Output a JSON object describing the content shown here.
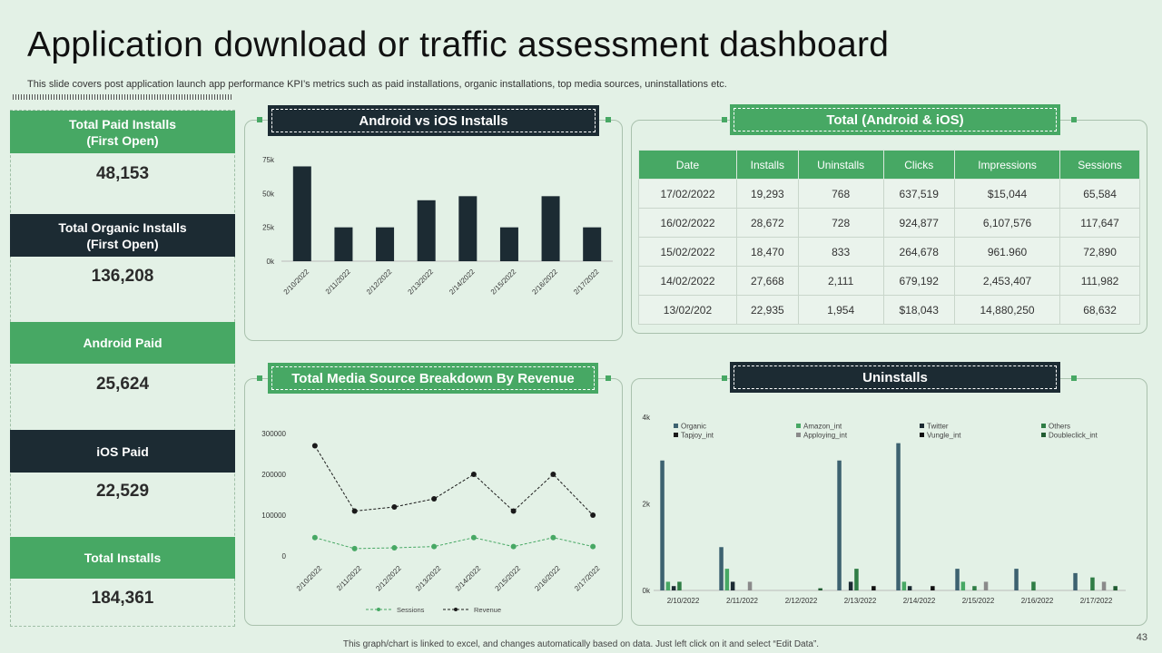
{
  "header": {
    "title": "Application download or traffic assessment dashboard",
    "subtitle": "This slide covers post application launch app performance KPI’s metrics such as paid installations, organic installations, top media sources, uninstallations etc."
  },
  "kpis": [
    {
      "label": "Total Paid Installs\n(First Open)",
      "value": "48,153"
    },
    {
      "label": "Total Organic Installs\n(First Open)",
      "value": "136,208"
    },
    {
      "label": "Android Paid",
      "value": "25,624"
    },
    {
      "label": "iOS Paid",
      "value": "22,529"
    },
    {
      "label": "Total Installs",
      "value": "184,361"
    }
  ],
  "panels": {
    "android_ios": "Android vs iOS Installs",
    "total": "Total (Android & iOS)",
    "media": "Total Media Source Breakdown By Revenue",
    "uninstalls": "Uninstalls"
  },
  "table": {
    "headers": [
      "Date",
      "Installs",
      "Uninstalls",
      "Clicks",
      "Impressions",
      "Sessions"
    ],
    "rows": [
      [
        "17/02/2022",
        "19,293",
        "768",
        "637,519",
        "$15,044",
        "65,584"
      ],
      [
        "16/02/2022",
        "28,672",
        "728",
        "924,877",
        "6,107,576",
        "117,647"
      ],
      [
        "15/02/2022",
        "18,470",
        "833",
        "264,678",
        "961.960",
        "72,890"
      ],
      [
        "14/02/2022",
        "27,668",
        "2,111",
        "679,192",
        "2,453,407",
        "111,982"
      ],
      [
        "13/02/202",
        "22,935",
        "1,954",
        "$18,043",
        "14,880,250",
        "68,632"
      ]
    ]
  },
  "footer": "This graph/chart is linked to excel, and changes automatically based on data. Just left click on it and select “Edit Data”.",
  "page_number": "43",
  "colors": {
    "green": "#47a864",
    "dark": "#1c2b33",
    "background": "#e3f1e6"
  },
  "chart_data": [
    {
      "type": "bar",
      "categories": [
        "2/10/2022",
        "2/11/2022",
        "2/12/2022",
        "2/13/2022",
        "2/14/2022",
        "2/15/2022",
        "2/16/2022",
        "2/17/2022"
      ],
      "values": [
        70000,
        25000,
        25000,
        45000,
        48000,
        25000,
        48000,
        25000
      ],
      "yticks": [
        "0k",
        "25k",
        "50k",
        "75k"
      ],
      "ylim": [
        0,
        75000
      ],
      "color": "#1c2b33"
    },
    {
      "type": "line",
      "categories": [
        "2/10/2022",
        "2/11/2022",
        "2/12/2022",
        "2/13/2022",
        "2/14/2022",
        "2/15/2022",
        "2/16/2022",
        "2/17/2022"
      ],
      "yticks": [
        "0",
        "100000",
        "200000",
        "300000"
      ],
      "ylim": [
        0,
        300000
      ],
      "legend": "bottom",
      "series": [
        {
          "name": "Sessions",
          "color": "#47a864",
          "values": [
            45000,
            18000,
            20000,
            23000,
            45000,
            23000,
            45000,
            23000
          ]
        },
        {
          "name": "Revenue",
          "color": "#1a1a1a",
          "values": [
            270000,
            110000,
            120000,
            140000,
            200000,
            110000,
            200000,
            100000
          ]
        }
      ]
    },
    {
      "type": "bar",
      "categories": [
        "2/10/2022",
        "2/11/2022",
        "2/12/2022",
        "2/13/2022",
        "2/14/2022",
        "2/15/2022",
        "2/16/2022",
        "2/17/2022"
      ],
      "yticks": [
        "0k",
        "2k",
        "4k"
      ],
      "ylim": [
        0,
        4000
      ],
      "legend": "top",
      "series": [
        {
          "name": "Organic",
          "color": "#3d6270",
          "values": [
            3000,
            1000,
            0,
            3000,
            3400,
            500,
            500,
            400
          ]
        },
        {
          "name": "Amazon_int",
          "color": "#47a864",
          "values": [
            200,
            500,
            0,
            0,
            200,
            200,
            0,
            0
          ]
        },
        {
          "name": "Twitter",
          "color": "#1c2b33",
          "values": [
            100,
            200,
            0,
            200,
            100,
            0,
            0,
            0
          ]
        },
        {
          "name": "Others",
          "color": "#2f7d45",
          "values": [
            200,
            0,
            0,
            500,
            0,
            100,
            200,
            300
          ]
        },
        {
          "name": "Tapjoy_int",
          "color": "#1a1a1a",
          "values": [
            0,
            0,
            0,
            0,
            0,
            0,
            0,
            0
          ]
        },
        {
          "name": "Apploying_int",
          "color": "#8a8a8a",
          "values": [
            0,
            200,
            0,
            0,
            0,
            200,
            0,
            200
          ]
        },
        {
          "name": "Vungle_int",
          "color": "#111111",
          "values": [
            0,
            0,
            0,
            100,
            100,
            0,
            0,
            0
          ]
        },
        {
          "name": "Doubleclick_int",
          "color": "#215c32",
          "values": [
            0,
            0,
            50,
            0,
            0,
            0,
            0,
            100
          ]
        }
      ]
    }
  ]
}
